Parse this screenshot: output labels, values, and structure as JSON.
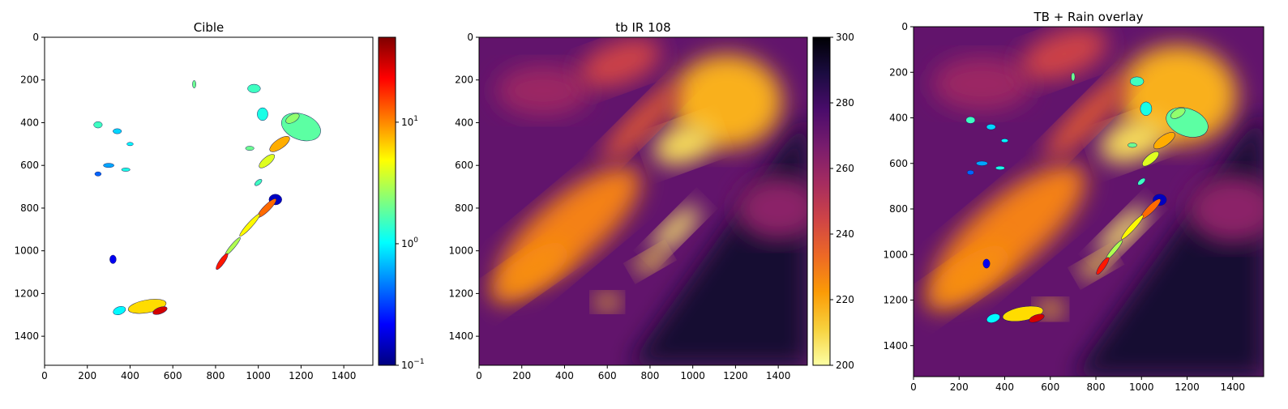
{
  "figure": {
    "panel_count": 3
  },
  "chart_data": [
    {
      "type": "heatmap",
      "title": "Cible",
      "xlim": [
        0,
        1536
      ],
      "ylim": [
        1536,
        0
      ],
      "xticks": [
        0,
        200,
        400,
        600,
        800,
        1000,
        1200,
        1400
      ],
      "yticks": [
        0,
        200,
        400,
        600,
        800,
        1000,
        1200,
        1400
      ],
      "colormap": "jet",
      "background": "#ffffff",
      "colorbar": {
        "scale": "log",
        "range": [
          0.1,
          50
        ],
        "ticks": [
          {
            "value": 0.1,
            "base": "10",
            "exp": "−1"
          },
          {
            "value": 1,
            "base": "10",
            "exp": "0"
          },
          {
            "value": 10,
            "base": "10",
            "exp": "1"
          }
        ]
      },
      "rain_cells": [
        {
          "x": 1200,
          "y": 420,
          "rx": 95,
          "ry": 60,
          "rot": 20,
          "v": 1.8
        },
        {
          "x": 1100,
          "y": 500,
          "rx": 55,
          "ry": 22,
          "rot": -35,
          "v": 8
        },
        {
          "x": 1040,
          "y": 580,
          "rx": 45,
          "ry": 18,
          "rot": -40,
          "v": 4
        },
        {
          "x": 1020,
          "y": 360,
          "rx": 25,
          "ry": 30,
          "rot": 0,
          "v": 1.2
        },
        {
          "x": 980,
          "y": 240,
          "rx": 30,
          "ry": 20,
          "rot": 0,
          "v": 1.5
        },
        {
          "x": 1080,
          "y": 760,
          "rx": 30,
          "ry": 25,
          "rot": 0,
          "v": 0.15
        },
        {
          "x": 1040,
          "y": 800,
          "rx": 60,
          "ry": 15,
          "rot": -45,
          "v": 12
        },
        {
          "x": 960,
          "y": 880,
          "rx": 70,
          "ry": 12,
          "rot": -48,
          "v": 5
        },
        {
          "x": 880,
          "y": 980,
          "rx": 55,
          "ry": 10,
          "rot": -50,
          "v": 3
        },
        {
          "x": 830,
          "y": 1050,
          "rx": 45,
          "ry": 12,
          "rot": -55,
          "v": 20
        },
        {
          "x": 480,
          "y": 1260,
          "rx": 90,
          "ry": 30,
          "rot": -10,
          "v": 6
        },
        {
          "x": 540,
          "y": 1280,
          "rx": 35,
          "ry": 15,
          "rot": -20,
          "v": 30
        },
        {
          "x": 350,
          "y": 1280,
          "rx": 30,
          "ry": 18,
          "rot": -20,
          "v": 1.0
        },
        {
          "x": 320,
          "y": 1040,
          "rx": 15,
          "ry": 20,
          "rot": 0,
          "v": 0.2
        },
        {
          "x": 250,
          "y": 410,
          "rx": 20,
          "ry": 15,
          "rot": 0,
          "v": 1.5
        },
        {
          "x": 340,
          "y": 440,
          "rx": 20,
          "ry": 12,
          "rot": 0,
          "v": 0.8
        },
        {
          "x": 400,
          "y": 500,
          "rx": 15,
          "ry": 8,
          "rot": 0,
          "v": 1.0
        },
        {
          "x": 300,
          "y": 600,
          "rx": 25,
          "ry": 10,
          "rot": 0,
          "v": 0.6
        },
        {
          "x": 380,
          "y": 620,
          "rx": 20,
          "ry": 8,
          "rot": 0,
          "v": 1.2
        },
        {
          "x": 250,
          "y": 640,
          "rx": 15,
          "ry": 10,
          "rot": 0,
          "v": 0.4
        },
        {
          "x": 700,
          "y": 220,
          "rx": 8,
          "ry": 18,
          "rot": 0,
          "v": 2
        },
        {
          "x": 1160,
          "y": 380,
          "rx": 35,
          "ry": 18,
          "rot": -30,
          "v": 2.5
        },
        {
          "x": 1000,
          "y": 680,
          "rx": 20,
          "ry": 10,
          "rot": -40,
          "v": 1.5
        },
        {
          "x": 960,
          "y": 520,
          "rx": 20,
          "ry": 10,
          "rot": 0,
          "v": 2
        }
      ]
    },
    {
      "type": "heatmap",
      "title": "tb IR 108",
      "xlim": [
        0,
        1536
      ],
      "ylim": [
        1536,
        0
      ],
      "xticks": [
        0,
        200,
        400,
        600,
        800,
        1000,
        1200,
        1400
      ],
      "yticks": [
        0,
        200,
        400,
        600,
        800,
        1000,
        1200,
        1400
      ],
      "colormap": "inferno_r",
      "colorbar": {
        "scale": "linear",
        "range": [
          200,
          300
        ],
        "ticks": [
          {
            "value": 200,
            "label": "200"
          },
          {
            "value": 220,
            "label": "220"
          },
          {
            "value": 240,
            "label": "240"
          },
          {
            "value": 260,
            "label": "260"
          },
          {
            "value": 280,
            "label": "280"
          },
          {
            "value": 300,
            "label": "300"
          }
        ]
      },
      "cloud_regions": [
        {
          "x": 1160,
          "y": 300,
          "rx": 260,
          "ry": 220,
          "rot": 0,
          "v": 218
        },
        {
          "x": 960,
          "y": 500,
          "rx": 150,
          "ry": 90,
          "rot": -20,
          "v": 208
        },
        {
          "x": 920,
          "y": 900,
          "rx": 150,
          "ry": 50,
          "rot": -45,
          "v": 206
        },
        {
          "x": 800,
          "y": 1050,
          "rx": 80,
          "ry": 40,
          "rot": -30,
          "v": 210
        },
        {
          "x": 600,
          "y": 1240,
          "rx": 60,
          "ry": 40,
          "rot": 0,
          "v": 215
        },
        {
          "x": 420,
          "y": 900,
          "rx": 420,
          "ry": 150,
          "rot": -40,
          "v": 228
        },
        {
          "x": 240,
          "y": 1100,
          "rx": 220,
          "ry": 80,
          "rot": -35,
          "v": 225
        },
        {
          "x": 760,
          "y": 400,
          "rx": 250,
          "ry": 60,
          "rot": -45,
          "v": 238
        },
        {
          "x": 300,
          "y": 250,
          "rx": 220,
          "ry": 120,
          "rot": 0,
          "v": 258
        },
        {
          "x": 1400,
          "y": 800,
          "rx": 200,
          "ry": 150,
          "rot": 0,
          "v": 262
        },
        {
          "x": 660,
          "y": 120,
          "rx": 200,
          "ry": 100,
          "rot": -20,
          "v": 245
        }
      ]
    },
    {
      "type": "heatmap",
      "title": "TB + Rain overlay",
      "xlim": [
        0,
        1536
      ],
      "ylim": [
        1536,
        0
      ],
      "xticks": [
        0,
        200,
        400,
        600,
        800,
        1000,
        1200,
        1400
      ],
      "yticks": [
        0,
        200,
        400,
        600,
        800,
        1000,
        1200,
        1400
      ],
      "base_layer": "tb IR 108",
      "overlay_layer": "Cible"
    }
  ]
}
